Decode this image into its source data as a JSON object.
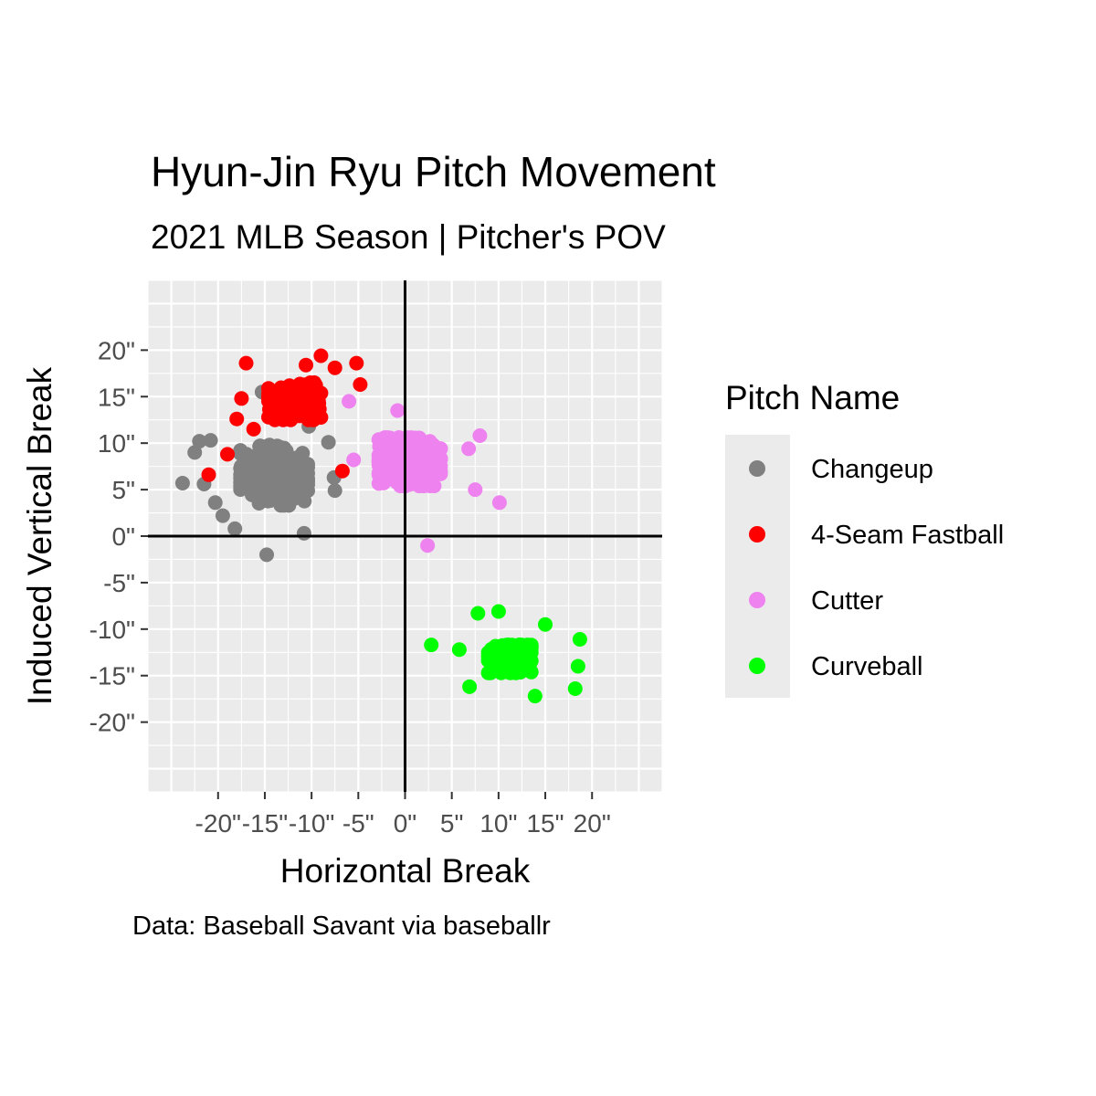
{
  "chart_data": {
    "type": "scatter",
    "title": "Hyun-Jin Ryu Pitch Movement",
    "subtitle": "2021 MLB Season | Pitcher's POV",
    "caption": "Data: Baseball Savant via baseballr",
    "xlabel": "Horizontal Break",
    "ylabel": "Induced Vertical Break",
    "xlim": [
      -27.5,
      27.5
    ],
    "ylim": [
      -27.5,
      27.5
    ],
    "xticks": [
      -20,
      -15,
      -10,
      -5,
      0,
      5,
      10,
      15,
      20
    ],
    "yticks": [
      -20,
      -15,
      -10,
      -5,
      0,
      5,
      10,
      15,
      20
    ],
    "xtick_labels": [
      "-20\"",
      "-15\"",
      "-10\"",
      "-5\"",
      "0\"",
      "5\"",
      "10\"",
      "15\"",
      "20\""
    ],
    "ytick_labels": [
      "-20\"",
      "-15\"",
      "-10\"",
      "-5\"",
      "0\"",
      "5\"",
      "10\"",
      "15\"",
      "20\""
    ],
    "grid": true,
    "reference_lines": {
      "x": 0,
      "y": 0
    },
    "legend": {
      "title": "Pitch Name",
      "position": "right"
    },
    "series": [
      {
        "name": "Changeup",
        "color": "#808080",
        "cluster": {
          "center": [
            -14,
            6.5
          ],
          "spread": [
            3.6,
            3.2
          ],
          "count": 260
        },
        "points": [
          [
            -23.8,
            5.7
          ],
          [
            -22.5,
            9.0
          ],
          [
            -22.0,
            10.2
          ],
          [
            -21.5,
            5.6
          ],
          [
            -20.8,
            10.3
          ],
          [
            -20.3,
            3.6
          ],
          [
            -19.5,
            2.2
          ],
          [
            -18.2,
            0.8
          ],
          [
            -15.3,
            15.5
          ],
          [
            -14.5,
            9.8
          ],
          [
            -14.8,
            -2.0
          ],
          [
            -10.8,
            0.3
          ],
          [
            -10.3,
            11.8
          ],
          [
            -7.6,
            6.3
          ],
          [
            -7.5,
            4.9
          ],
          [
            -8.2,
            10.1
          ]
        ]
      },
      {
        "name": "4-Seam Fastball",
        "color": "#ff0000",
        "cluster": {
          "center": [
            -11.8,
            14.5
          ],
          "spread": [
            2.8,
            2.0
          ],
          "count": 190
        },
        "points": [
          [
            -17.0,
            18.6
          ],
          [
            -17.5,
            14.8
          ],
          [
            -18.0,
            12.6
          ],
          [
            -16.2,
            11.5
          ],
          [
            -10.6,
            18.4
          ],
          [
            -9.0,
            19.4
          ],
          [
            -7.5,
            18.1
          ],
          [
            -5.2,
            18.6
          ],
          [
            -4.8,
            16.3
          ],
          [
            -6.7,
            7.0
          ],
          [
            -21.0,
            6.6
          ],
          [
            -19.0,
            8.8
          ]
        ]
      },
      {
        "name": "Cutter",
        "color": "#ee82ee",
        "cluster": {
          "center": [
            0.5,
            8.0
          ],
          "spread": [
            3.3,
            2.6
          ],
          "count": 400
        },
        "points": [
          [
            8.0,
            10.8
          ],
          [
            6.8,
            9.4
          ],
          [
            10.1,
            3.6
          ],
          [
            2.4,
            -1.0
          ],
          [
            -6.0,
            14.5
          ],
          [
            -5.5,
            8.2
          ],
          [
            -0.8,
            13.5
          ],
          [
            7.5,
            5.0
          ]
        ]
      },
      {
        "name": "Curveball",
        "color": "#00ff00",
        "cluster": {
          "center": [
            11.2,
            -13.2
          ],
          "spread": [
            2.3,
            1.5
          ],
          "count": 230
        },
        "points": [
          [
            7.8,
            -8.3
          ],
          [
            10.0,
            -8.1
          ],
          [
            2.8,
            -11.7
          ],
          [
            5.8,
            -12.2
          ],
          [
            6.9,
            -16.2
          ],
          [
            15.0,
            -9.5
          ],
          [
            18.7,
            -11.1
          ],
          [
            18.5,
            -14.0
          ],
          [
            18.2,
            -16.4
          ],
          [
            13.9,
            -17.2
          ]
        ]
      }
    ]
  }
}
